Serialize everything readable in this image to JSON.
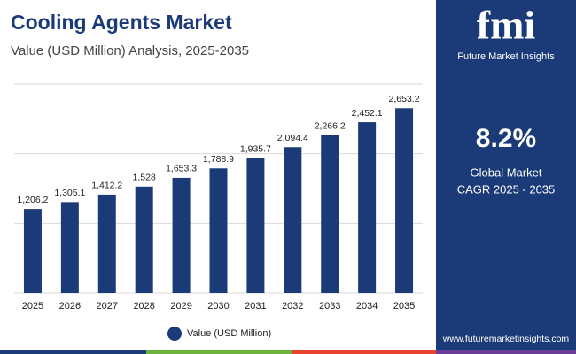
{
  "chart_data": {
    "type": "bar",
    "title": "Cooling Agents Market",
    "subtitle": "Value (USD Million) Analysis, 2025-2035",
    "categories": [
      "2025",
      "2026",
      "2027",
      "2028",
      "2029",
      "2030",
      "2031",
      "2032",
      "2033",
      "2034",
      "2035"
    ],
    "series": [
      {
        "name": "Value (USD Million)",
        "color": "#1b3a78",
        "values": [
          1206.2,
          1305.1,
          1412.2,
          1528,
          1653.3,
          1788.9,
          1935.7,
          2094.4,
          2266.2,
          2452.1,
          2653.2
        ],
        "value_labels": [
          "1,206.2",
          "1,305.1",
          "1,412.2",
          "1,528",
          "1,653.3",
          "1,788.9",
          "1,935.7",
          "2,094.4",
          "2,266.2",
          "2,452.1",
          "2,653.2"
        ]
      }
    ],
    "ylim": [
      0,
      3000
    ],
    "yticks": [
      0,
      1000,
      2000,
      3000
    ],
    "grid": true,
    "legend": "bottom"
  },
  "sidebar": {
    "logo": "fmi",
    "brand": "Future Market Insights",
    "cagr": "8.2%",
    "cagr_label_1": "Global Market",
    "cagr_label_2": "CAGR 2025 - 2035",
    "website": "www.futuremarketinsights.com"
  }
}
